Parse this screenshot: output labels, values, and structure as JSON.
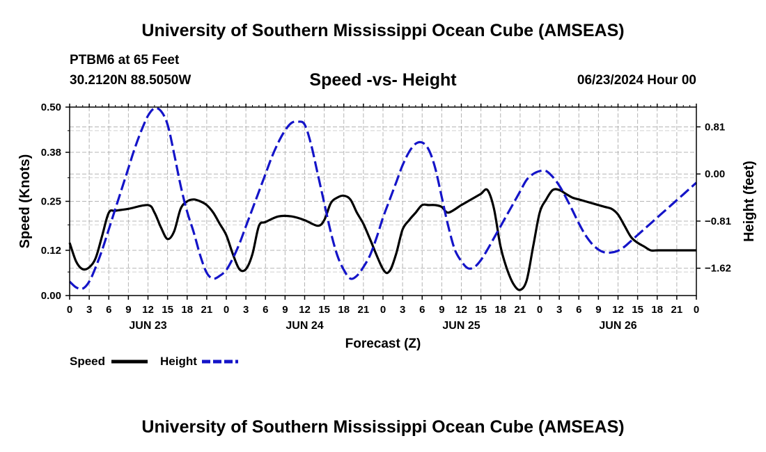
{
  "header": {
    "title": "University of Southern Mississippi Ocean Cube (AMSEAS)",
    "station": "PTBM6 at 65 Feet",
    "coordinates": "30.2120N  88.5050W",
    "subtitle": "Speed -vs- Height",
    "datetime": "06/23/2024 Hour 00"
  },
  "footer": {
    "title": "University of Southern Mississippi Ocean Cube (AMSEAS)"
  },
  "chart_data": {
    "type": "line",
    "title": "Speed -vs- Height",
    "xlabel": "Forecast (Z)",
    "ylabel": "Speed (Knots)",
    "y2label": "Height (feet)",
    "xlim": [
      0,
      96
    ],
    "ylim": [
      0,
      0.5
    ],
    "y2lim": [
      -2.09,
      1.15
    ],
    "grid": true,
    "legend_position": "bottom-left",
    "x_ticks": [
      0,
      3,
      6,
      9,
      12,
      15,
      18,
      21,
      24,
      27,
      30,
      33,
      36,
      39,
      42,
      45,
      48,
      51,
      54,
      57,
      60,
      63,
      66,
      69,
      72,
      75,
      78,
      81,
      84,
      87,
      90,
      93,
      96
    ],
    "x_tick_labels": [
      "0",
      "3",
      "6",
      "9",
      "12",
      "15",
      "18",
      "21",
      "0",
      "3",
      "6",
      "9",
      "12",
      "15",
      "18",
      "21",
      "0",
      "3",
      "6",
      "9",
      "12",
      "15",
      "18",
      "21",
      "0",
      "3",
      "6",
      "9",
      "12",
      "15",
      "18",
      "21",
      "0"
    ],
    "day_labels": [
      {
        "label": "JUN 23",
        "x": 12
      },
      {
        "label": "JUN 24",
        "x": 36
      },
      {
        "label": "JUN 25",
        "x": 60
      },
      {
        "label": "JUN 26",
        "x": 84
      }
    ],
    "y_ticks": [
      0.0,
      0.12,
      0.25,
      0.38,
      0.5
    ],
    "y_tick_labels": [
      "0.00",
      "0.12",
      "0.25",
      "0.38",
      "0.50"
    ],
    "y2_ticks": [
      -1.62,
      -0.81,
      0.0,
      0.81
    ],
    "y2_tick_labels": [
      "−1.62",
      "−0.81",
      "0.00",
      "0.81"
    ],
    "series": [
      {
        "name": "Speed",
        "axis": "left",
        "color": "#000000",
        "style": "solid",
        "x": [
          0,
          1,
          2,
          3,
          4,
          5,
          6,
          7,
          9,
          12,
          13,
          14,
          15,
          16,
          17,
          18,
          19,
          20,
          21,
          22,
          23,
          24,
          25,
          26,
          27,
          28,
          29,
          30,
          32,
          34,
          36,
          38,
          39,
          40,
          41,
          42,
          43,
          44,
          45,
          46,
          48,
          49,
          50,
          51,
          52,
          53,
          54,
          55,
          56,
          57,
          58,
          60,
          61,
          62,
          63,
          64,
          65,
          66,
          67,
          68,
          69,
          70,
          71,
          72,
          73,
          74,
          75,
          76,
          77,
          78,
          79,
          80,
          81,
          82,
          83,
          84,
          85,
          86,
          87,
          88,
          89,
          90,
          91,
          92,
          93,
          94,
          95,
          96
        ],
        "values": [
          0.14,
          0.09,
          0.07,
          0.075,
          0.1,
          0.16,
          0.22,
          0.225,
          0.23,
          0.24,
          0.22,
          0.18,
          0.15,
          0.17,
          0.23,
          0.25,
          0.255,
          0.25,
          0.24,
          0.22,
          0.19,
          0.16,
          0.11,
          0.07,
          0.07,
          0.11,
          0.185,
          0.195,
          0.21,
          0.21,
          0.2,
          0.185,
          0.2,
          0.245,
          0.26,
          0.265,
          0.255,
          0.22,
          0.19,
          0.15,
          0.07,
          0.065,
          0.11,
          0.175,
          0.2,
          0.22,
          0.24,
          0.24,
          0.24,
          0.235,
          0.22,
          0.24,
          0.25,
          0.26,
          0.27,
          0.28,
          0.23,
          0.13,
          0.07,
          0.03,
          0.015,
          0.04,
          0.13,
          0.22,
          0.255,
          0.28,
          0.28,
          0.27,
          0.26,
          0.255,
          0.25,
          0.245,
          0.24,
          0.235,
          0.23,
          0.215,
          0.185,
          0.155,
          0.14,
          0.13,
          0.12,
          0.12,
          0.12,
          0.12,
          0.12,
          0.12,
          0.12,
          0.12
        ]
      },
      {
        "name": "Height",
        "axis": "right",
        "color": "#1414c8",
        "style": "dashed",
        "x": [
          0,
          1,
          2,
          3,
          4,
          5,
          6,
          7,
          8,
          9,
          10,
          11,
          12,
          13,
          14,
          15,
          16,
          17,
          18,
          19,
          20,
          21,
          22,
          23,
          24,
          25,
          26,
          27,
          28,
          29,
          30,
          31,
          32,
          33,
          34,
          35,
          36,
          37,
          38,
          39,
          40,
          41,
          42,
          43,
          44,
          45,
          46,
          47,
          48,
          49,
          50,
          51,
          52,
          53,
          54,
          55,
          56,
          57,
          58,
          59,
          60,
          61,
          62,
          63,
          64,
          65,
          66,
          67,
          68,
          69,
          70,
          71,
          72,
          73,
          74,
          75,
          76,
          77,
          78,
          79,
          80,
          81,
          82,
          83,
          84,
          85,
          86,
          87,
          88,
          89,
          90,
          91,
          92,
          93,
          94,
          95,
          96
        ],
        "values": [
          -1.85,
          -1.95,
          -1.97,
          -1.85,
          -1.6,
          -1.3,
          -0.95,
          -0.6,
          -0.25,
          0.1,
          0.45,
          0.75,
          1.0,
          1.13,
          1.08,
          0.85,
          0.35,
          -0.2,
          -0.65,
          -1.0,
          -1.4,
          -1.7,
          -1.8,
          -1.75,
          -1.65,
          -1.45,
          -1.2,
          -0.9,
          -0.6,
          -0.3,
          0.0,
          0.3,
          0.55,
          0.75,
          0.88,
          0.9,
          0.85,
          0.5,
          0.0,
          -0.5,
          -1.0,
          -1.4,
          -1.65,
          -1.8,
          -1.75,
          -1.6,
          -1.4,
          -1.1,
          -0.75,
          -0.45,
          -0.15,
          0.15,
          0.38,
          0.52,
          0.54,
          0.42,
          0.1,
          -0.4,
          -0.9,
          -1.3,
          -1.5,
          -1.62,
          -1.6,
          -1.48,
          -1.3,
          -1.1,
          -0.9,
          -0.7,
          -0.5,
          -0.3,
          -0.1,
          0.0,
          0.05,
          0.05,
          -0.05,
          -0.2,
          -0.4,
          -0.62,
          -0.85,
          -1.05,
          -1.2,
          -1.3,
          -1.35,
          -1.35,
          -1.32,
          -1.25,
          -1.15,
          -1.05,
          -0.95,
          -0.85,
          -0.75,
          -0.65,
          -0.55,
          -0.45,
          -0.35,
          -0.25,
          -0.15
        ]
      }
    ]
  },
  "legend": {
    "speed_label": "Speed",
    "height_label": "Height"
  }
}
